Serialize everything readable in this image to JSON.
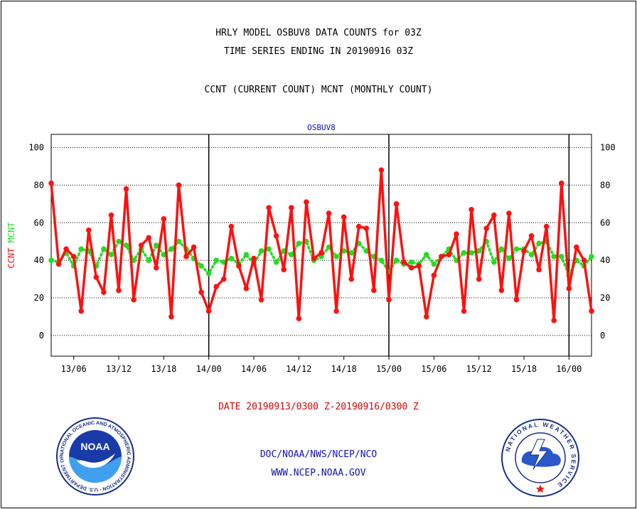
{
  "header": {
    "title_line1": "HRLY MODEL OSBUV8 DATA COUNTS for 03Z",
    "title_line2": "TIME SERIES ENDING IN 20190916 03Z",
    "subtitle": "CCNT (CURRENT COUNT) MCNT (MONTHLY COUNT)"
  },
  "colors": {
    "ccnt": "#ff1010",
    "mcnt": "#22dd22",
    "text_blue": "#1010c0",
    "date_red": "#e00000"
  },
  "chart_data": {
    "type": "line",
    "title": "OSBUV8",
    "ylabel_parts": [
      {
        "text": "CCNT",
        "color": "#ff1010"
      },
      {
        "text": "MCNT",
        "color": "#22dd22"
      }
    ],
    "ylim": [
      -11,
      107
    ],
    "yticks": [
      0,
      20,
      40,
      60,
      80,
      100
    ],
    "grid": true,
    "x_start_hour": 3,
    "x_hours": 72,
    "xticks": [
      {
        "hour": 6,
        "label": "13/06"
      },
      {
        "hour": 12,
        "label": "13/12"
      },
      {
        "hour": 18,
        "label": "13/18"
      },
      {
        "hour": 24,
        "label": "14/00"
      },
      {
        "hour": 30,
        "label": "14/06"
      },
      {
        "hour": 36,
        "label": "14/12"
      },
      {
        "hour": 42,
        "label": "14/18"
      },
      {
        "hour": 48,
        "label": "15/00"
      },
      {
        "hour": 54,
        "label": "15/06"
      },
      {
        "hour": 60,
        "label": "15/12"
      },
      {
        "hour": 66,
        "label": "15/18"
      },
      {
        "hour": 72,
        "label": "16/00"
      }
    ],
    "day_lines": [
      24,
      48,
      72
    ],
    "series": [
      {
        "name": "CCNT",
        "color": "#ff1010",
        "style": "solid",
        "values": [
          81,
          38,
          46,
          42,
          13,
          56,
          31,
          23,
          64,
          24,
          78,
          19,
          48,
          52,
          36,
          62,
          10,
          80,
          42,
          47,
          23,
          13,
          26,
          30,
          58,
          37,
          25,
          41,
          19,
          68,
          53,
          35,
          68,
          9,
          71,
          41,
          44,
          65,
          13,
          63,
          30,
          58,
          57,
          24,
          88,
          19,
          70,
          39,
          36,
          37,
          10,
          32,
          42,
          43,
          54,
          13,
          67,
          30,
          57,
          64,
          24,
          65,
          19,
          45,
          53,
          35,
          58,
          8,
          81,
          25,
          47,
          40,
          13
        ]
      },
      {
        "name": "MCNT",
        "color": "#22dd22",
        "style": "dotted",
        "values": [
          40,
          39,
          44,
          37,
          46,
          45,
          37,
          46,
          43,
          50,
          48,
          40,
          46,
          40,
          48,
          43,
          46,
          50,
          46,
          41,
          37,
          33,
          40,
          39,
          41,
          38,
          43,
          38,
          45,
          46,
          39,
          45,
          43,
          49,
          50,
          40,
          42,
          47,
          42,
          45,
          44,
          49,
          45,
          42,
          40,
          34,
          40,
          38,
          39,
          38,
          43,
          38,
          42,
          46,
          40,
          44,
          44,
          45,
          50,
          39,
          46,
          41,
          46,
          46,
          43,
          49,
          50,
          42,
          42,
          32,
          40,
          37,
          42
        ]
      }
    ]
  },
  "footer": {
    "date_range": "DATE 20190913/0300 Z-20190916/0300 Z",
    "org": "DOC/NOAA/NWS/NCEP/NCO",
    "url": "WWW.NCEP.NOAA.GOV",
    "noaa_logo_text": "NOAA",
    "noaa_ring_text": "NATIONAL OCEANIC AND ATMOSPHERIC ADMINISTRATION · U.S. DEPARTMENT OF COMMERCE ·",
    "nws_ring_text": "NATIONAL WEATHER SERVICE"
  }
}
